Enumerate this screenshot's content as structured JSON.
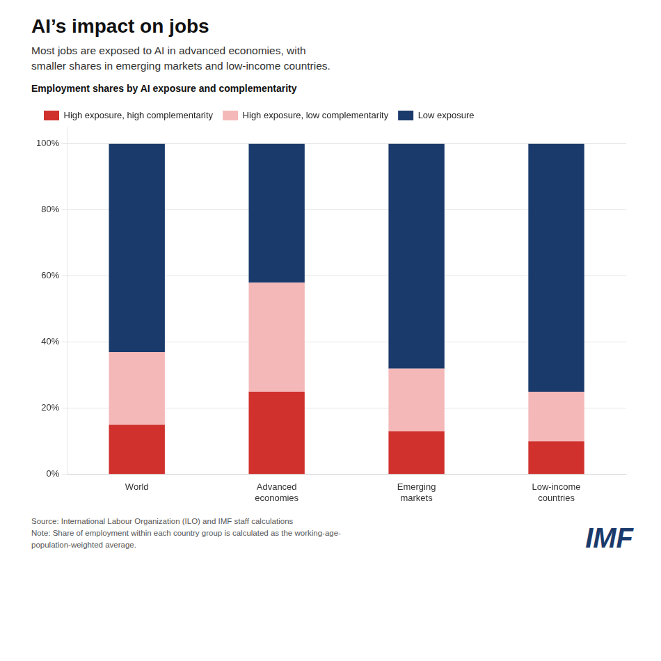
{
  "chart_data": {
    "type": "bar",
    "title": "AI’s impact on jobs",
    "subtitle": "Most jobs are exposed to AI in advanced economies, with\nsmaller shares in emerging markets and low-income countries.",
    "annotations": [
      {
        "text": "Employment shares by AI exposure and complementarity"
      },
      {
        "text": "Source: International Labour Organization (ILO) and IMF staff calculations\nNote: Share of employment within each country group is calculated as the working-age-\npopulation-weighted average."
      },
      {
        "text": "IMF",
        "color": "#1a3a6b"
      }
    ],
    "categories": [
      "World",
      "Advanced\neconomies",
      "Emerging\nmarkets",
      "Low-income\ncountries"
    ],
    "series": [
      {
        "name": "High exposure, high complementarity",
        "color": "#d0312d",
        "values": [
          15,
          25,
          13,
          10
        ]
      },
      {
        "name": "High exposure, low complementarity",
        "color": "#f4b8b8",
        "values": [
          22,
          33,
          19,
          15
        ]
      },
      {
        "name": "Low exposure",
        "color": "#1a3a6b",
        "values": [
          63,
          42,
          68,
          75
        ]
      }
    ],
    "stacked": true,
    "ylim": [
      0,
      105
    ],
    "yticks": [
      {
        "value": 0,
        "label": "0%"
      },
      {
        "value": 20,
        "label": "20%"
      },
      {
        "value": 40,
        "label": "40%"
      },
      {
        "value": 60,
        "label": "60%"
      },
      {
        "value": 80,
        "label": "80%"
      },
      {
        "value": 100,
        "label": "100%"
      }
    ],
    "grid": true,
    "legend": "top"
  }
}
